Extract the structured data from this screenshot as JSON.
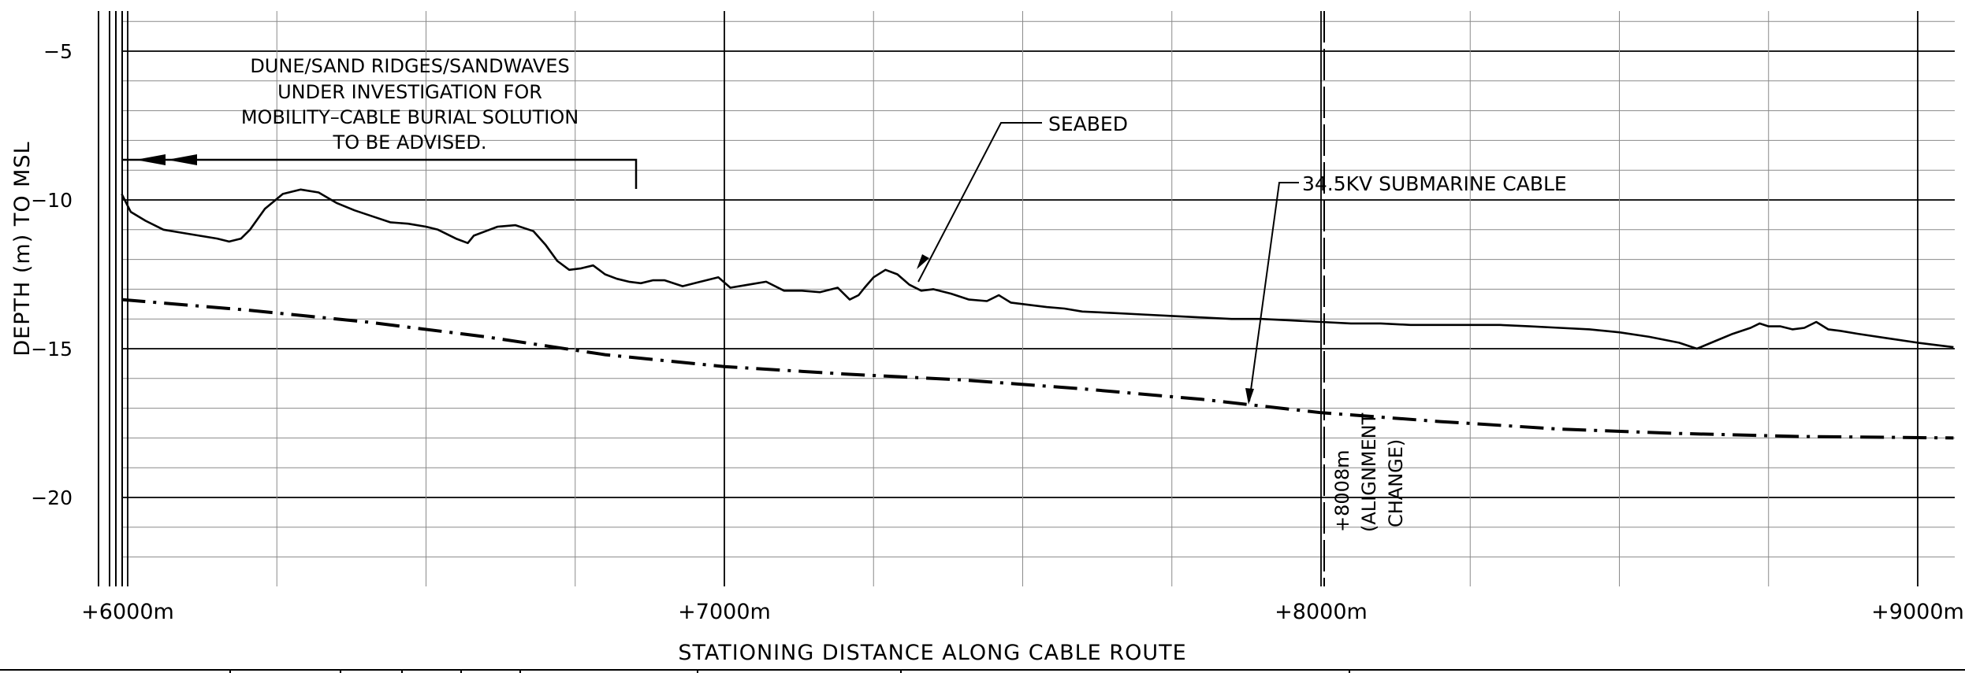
{
  "chart_data": {
    "type": "line",
    "xlabel": "STATIONING DISTANCE ALONG CABLE ROUTE",
    "ylabel": "DEPTH (m) TO MSL",
    "xlim": [
      5980,
      9060
    ],
    "ylim": [
      -22.6,
      -3.5
    ],
    "x_ticks": [
      {
        "value": 6000,
        "label": "+6000m"
      },
      {
        "value": 7000,
        "label": "+7000m"
      },
      {
        "value": 8000,
        "label": "+8000m"
      },
      {
        "value": 9000,
        "label": "+9000m"
      }
    ],
    "y_ticks": [
      {
        "value": -5,
        "label": "−5"
      },
      {
        "value": -10,
        "label": "−10"
      },
      {
        "value": -15,
        "label": "−15"
      },
      {
        "value": -20,
        "label": "−20"
      }
    ],
    "grid": true,
    "series": [
      {
        "name": "SEABED",
        "style": "solid",
        "color": "#000000",
        "x": [
          5990,
          6005,
          6030,
          6060,
          6090,
          6120,
          6150,
          6170,
          6190,
          6205,
          6230,
          6260,
          6290,
          6320,
          6350,
          6380,
          6410,
          6440,
          6470,
          6500,
          6520,
          6550,
          6570,
          6580,
          6600,
          6620,
          6650,
          6680,
          6700,
          6720,
          6740,
          6760,
          6780,
          6800,
          6820,
          6840,
          6860,
          6880,
          6900,
          6930,
          6960,
          6990,
          7010,
          7040,
          7070,
          7100,
          7130,
          7160,
          7190,
          7210,
          7225,
          7235,
          7250,
          7270,
          7290,
          7310,
          7330,
          7350,
          7380,
          7410,
          7440,
          7460,
          7480,
          7500,
          7520,
          7540,
          7570,
          7600,
          7650,
          7700,
          7750,
          7800,
          7850,
          7900,
          7950,
          8000,
          8050,
          8100,
          8150,
          8200,
          8250,
          8300,
          8350,
          8400,
          8450,
          8500,
          8550,
          8600,
          8630,
          8660,
          8690,
          8720,
          8735,
          8750,
          8770,
          8790,
          8810,
          8830,
          8850,
          8870,
          8900,
          8950,
          9000,
          9060
        ],
        "y": [
          -9.8,
          -10.4,
          -10.7,
          -11.0,
          -11.1,
          -11.2,
          -11.3,
          -11.4,
          -11.3,
          -11.0,
          -10.3,
          -9.8,
          -9.65,
          -9.75,
          -10.1,
          -10.35,
          -10.55,
          -10.75,
          -10.8,
          -10.9,
          -11.0,
          -11.3,
          -11.45,
          -11.2,
          -11.05,
          -10.9,
          -10.85,
          -11.05,
          -11.5,
          -12.05,
          -12.35,
          -12.3,
          -12.2,
          -12.5,
          -12.65,
          -12.75,
          -12.8,
          -12.7,
          -12.7,
          -12.9,
          -12.75,
          -12.6,
          -12.95,
          -12.85,
          -12.75,
          -13.05,
          -13.05,
          -13.1,
          -12.95,
          -13.35,
          -13.2,
          -12.95,
          -12.6,
          -12.35,
          -12.5,
          -12.85,
          -13.05,
          -13.0,
          -13.15,
          -13.35,
          -13.4,
          -13.2,
          -13.45,
          -13.5,
          -13.55,
          -13.6,
          -13.65,
          -13.75,
          -13.8,
          -13.85,
          -13.9,
          -13.95,
          -14.0,
          -14.0,
          -14.05,
          -14.1,
          -14.15,
          -14.15,
          -14.2,
          -14.2,
          -14.2,
          -14.2,
          -14.25,
          -14.3,
          -14.35,
          -14.45,
          -14.6,
          -14.8,
          -15.0,
          -14.75,
          -14.5,
          -14.3,
          -14.15,
          -14.25,
          -14.25,
          -14.35,
          -14.3,
          -14.1,
          -14.35,
          -14.4,
          -14.5,
          -14.65,
          -14.8,
          -14.95
        ]
      },
      {
        "name": "34.5KV SUBMARINE CABLE",
        "style": "dash-dot",
        "color": "#000000",
        "x": [
          5990,
          6200,
          6400,
          6600,
          6800,
          7000,
          7200,
          7400,
          7600,
          7800,
          8000,
          8200,
          8400,
          8600,
          8800,
          9060
        ],
        "y": [
          -13.35,
          -13.7,
          -14.1,
          -14.6,
          -15.2,
          -15.6,
          -15.85,
          -16.05,
          -16.35,
          -16.7,
          -17.15,
          -17.45,
          -17.7,
          -17.85,
          -17.95,
          -18.0
        ]
      }
    ],
    "annotations": [
      {
        "text": "SEABED",
        "at_x": 7330,
        "at_y": -12.35
      },
      {
        "text": "34.5KV SUBMARINE CABLE",
        "at_x": 7890,
        "at_y": -16.85
      },
      {
        "lines": [
          "DUNE/SAND RIDGES/SANDWAVES",
          "UNDER INVESTIGATION FOR",
          "MOBILITY–CABLE BURIAL SOLUTION",
          "TO BE ADVISED."
        ],
        "x_start": 5990,
        "x_end": 6850,
        "y": -8.7
      },
      {
        "lines": [
          "+8008m",
          "(ALIGNMENT",
          "CHANGE)"
        ],
        "x": 8008
      }
    ]
  }
}
